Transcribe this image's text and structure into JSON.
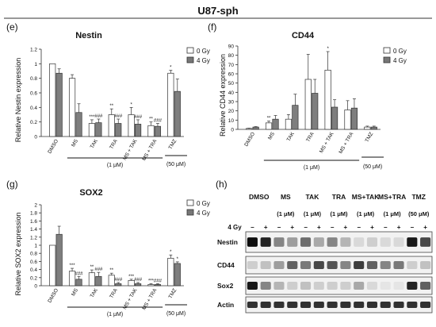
{
  "figure_title": "U87-sph",
  "legend": {
    "gy0": "0 Gy",
    "gy4": "4 Gy"
  },
  "colors": {
    "gy0": "#ffffff",
    "gy4": "#777777",
    "western_bg": "#f2f2f2"
  },
  "chart_data": [
    {
      "id": "e",
      "panel_label": "(e)",
      "type": "bar",
      "title": "Nestin",
      "ylabel": "Relative Nestin expression",
      "ylim": [
        0,
        1.2
      ],
      "yticks": [
        "0",
        "0.2",
        "0.4",
        "0.6",
        "0.8",
        "1",
        "1.2"
      ],
      "categories": [
        "DMSO",
        "MS",
        "TAK",
        "TRA",
        "MS + TAK",
        "MS + TRA",
        "TMZ"
      ],
      "series": [
        {
          "name": "0 Gy",
          "values": [
            1.0,
            0.8,
            0.18,
            0.3,
            0.3,
            0.15,
            0.87
          ],
          "err": [
            0.0,
            0.05,
            0.05,
            0.08,
            0.1,
            0.05,
            0.04
          ]
        },
        {
          "name": "4 Gy",
          "values": [
            0.87,
            0.33,
            0.19,
            0.18,
            0.17,
            0.14,
            0.62
          ],
          "err": [
            0.06,
            0.12,
            0.05,
            0.06,
            0.06,
            0.04,
            0.17
          ]
        }
      ],
      "annotations": [
        {
          "cat": 2,
          "series": 0,
          "text": "***"
        },
        {
          "cat": 2,
          "series": 1,
          "text": "###"
        },
        {
          "cat": 3,
          "series": 0,
          "text": "**"
        },
        {
          "cat": 3,
          "series": 1,
          "text": "###"
        },
        {
          "cat": 4,
          "series": 0,
          "text": "*"
        },
        {
          "cat": 4,
          "series": 1,
          "text": "###"
        },
        {
          "cat": 5,
          "series": 0,
          "text": "**"
        },
        {
          "cat": 5,
          "series": 1,
          "text": "###"
        },
        {
          "cat": 6,
          "series": 0,
          "text": "*"
        }
      ],
      "group_labels": [
        "(1 μM)",
        "(50 μM)"
      ]
    },
    {
      "id": "f",
      "panel_label": "(f)",
      "type": "bar",
      "title": "CD44",
      "ylabel": "Relative CD44 expression",
      "ylim": [
        0,
        90
      ],
      "yticks": [
        "0",
        "10",
        "20",
        "30",
        "40",
        "50",
        "60",
        "70",
        "80",
        "90"
      ],
      "categories": [
        "DMSO",
        "MS",
        "TAK",
        "TRA",
        "MS + TAK",
        "MS + TRA",
        "TMZ"
      ],
      "series": [
        {
          "name": "0 Gy",
          "values": [
            1.0,
            7,
            11,
            54,
            64,
            21,
            2.5
          ],
          "err": [
            0.3,
            2,
            5,
            27,
            20,
            10,
            1
          ]
        },
        {
          "name": "4 Gy",
          "values": [
            2.5,
            11,
            26,
            39,
            24,
            23,
            2.5
          ],
          "err": [
            0.5,
            4,
            12,
            15,
            8,
            10,
            1
          ]
        }
      ],
      "annotations": [
        {
          "cat": 1,
          "series": 0,
          "text": "**"
        },
        {
          "cat": 4,
          "series": 0,
          "text": "*"
        }
      ],
      "group_labels": [
        "(1 μM)",
        "(50 μM)"
      ]
    },
    {
      "id": "g",
      "panel_label": "(g)",
      "type": "bar",
      "title": "SOX2",
      "ylabel": "Relative SOX2 expression",
      "ylim": [
        0,
        2.0
      ],
      "yticks": [
        "0",
        "0.2",
        "0.4",
        "0.6",
        "0.8",
        "1",
        "1.2",
        "1.4",
        "1.6",
        "1.8",
        "2"
      ],
      "categories": [
        "DMSO",
        "MS",
        "TAK",
        "TRA",
        "MS + TAK",
        "MS + TRA",
        "TMZ"
      ],
      "series": [
        {
          "name": "0 Gy",
          "values": [
            1.0,
            0.36,
            0.32,
            0.26,
            0.13,
            0.03,
            0.68
          ],
          "err": [
            0.0,
            0.07,
            0.07,
            0.05,
            0.03,
            0.02,
            0.08
          ]
        },
        {
          "name": "4 Gy",
          "values": [
            1.27,
            0.16,
            0.23,
            0.05,
            0.05,
            0.03,
            0.55
          ],
          "err": [
            0.2,
            0.07,
            0.1,
            0.03,
            0.03,
            0.02,
            0.04
          ]
        }
      ],
      "annotations": [
        {
          "cat": 1,
          "series": 0,
          "text": "***"
        },
        {
          "cat": 1,
          "series": 1,
          "text": "###"
        },
        {
          "cat": 2,
          "series": 0,
          "text": "**"
        },
        {
          "cat": 2,
          "series": 1,
          "text": "###"
        },
        {
          "cat": 3,
          "series": 0,
          "text": "**"
        },
        {
          "cat": 3,
          "series": 1,
          "text": "###"
        },
        {
          "cat": 4,
          "series": 0,
          "text": "***"
        },
        {
          "cat": 4,
          "series": 1,
          "text": "###"
        },
        {
          "cat": 5,
          "series": 0,
          "text": "***"
        },
        {
          "cat": 5,
          "series": 1,
          "text": "###"
        },
        {
          "cat": 6,
          "series": 0,
          "text": "*"
        },
        {
          "cat": 6,
          "series": 1,
          "text": "*"
        }
      ],
      "group_labels": [
        "(1 μM)",
        "(50 μM)"
      ]
    }
  ],
  "western": {
    "panel_label": "(h)",
    "groups": [
      "DMSO",
      "MS",
      "TAK",
      "TRA",
      "MS+TAK",
      "MS+TRA",
      "TMZ"
    ],
    "concentrations": [
      "(1 μM)",
      "(1 μM)",
      "(1 μM)",
      "(1 μM)",
      "(1 μM)",
      "(50 μM)"
    ],
    "gy_label": "4 Gy",
    "minus": "−",
    "plus": "+",
    "rows": [
      "Nestin",
      "CD44",
      "Sox2",
      "Actin"
    ],
    "intensity": [
      [
        0.95,
        0.85,
        0.45,
        0.35,
        0.55,
        0.3,
        0.45,
        0.25,
        0.1,
        0.15,
        0.1,
        0.1,
        0.9,
        0.7
      ],
      [
        0.15,
        0.2,
        0.35,
        0.6,
        0.5,
        0.7,
        0.65,
        0.45,
        0.75,
        0.6,
        0.45,
        0.5,
        0.15,
        0.2
      ],
      [
        0.9,
        0.45,
        0.25,
        0.15,
        0.2,
        0.15,
        0.15,
        0.15,
        0.3,
        0.1,
        0.05,
        0.05,
        0.85,
        0.6
      ],
      [
        0.8,
        0.8,
        0.8,
        0.8,
        0.8,
        0.8,
        0.8,
        0.8,
        0.8,
        0.8,
        0.8,
        0.8,
        0.8,
        0.8
      ]
    ]
  }
}
